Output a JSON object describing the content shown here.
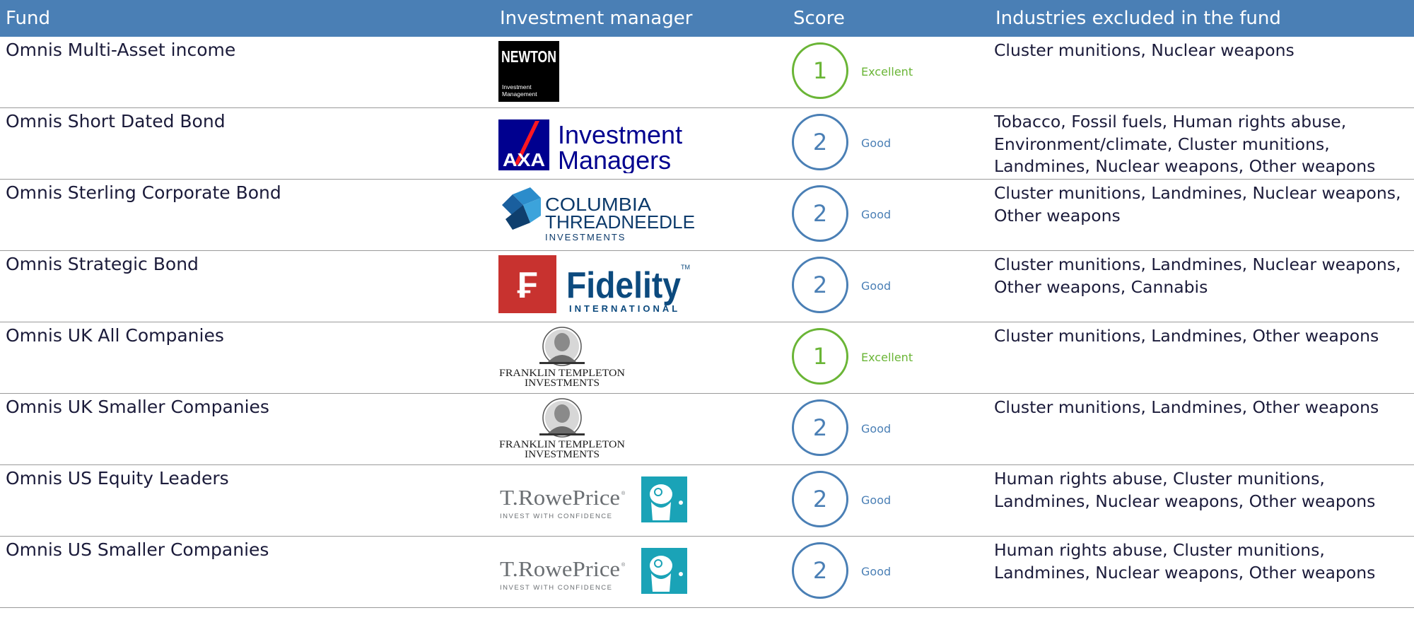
{
  "headers": {
    "fund": "Fund",
    "manager": "Investment manager",
    "score": "Score",
    "industries": "Industries excluded in the fund"
  },
  "colors": {
    "header_bg": "#4a7fb5",
    "excellent": "#6ab536",
    "good": "#4a7fb5"
  },
  "rows": [
    {
      "fund": "Omnis Multi-Asset income",
      "manager_logo": "newton-logo",
      "score": "1",
      "rating": "Excellent",
      "industries": "Cluster munitions, Nuclear weapons"
    },
    {
      "fund": "Omnis Short Dated Bond",
      "manager_logo": "axa-logo",
      "score": "2",
      "rating": "Good",
      "industries": "Tobacco, Fossil fuels, Human rights abuse, Environment/climate, Cluster munitions, Landmines, Nuclear weapons, Other weapons"
    },
    {
      "fund": "Omnis Sterling Corporate Bond",
      "manager_logo": "columbia-threadneedle-logo",
      "score": "2",
      "rating": "Good",
      "industries": "Cluster munitions, Landmines, Nuclear weapons, Other weapons"
    },
    {
      "fund": "Omnis Strategic Bond",
      "manager_logo": "fidelity-logo",
      "score": "2",
      "rating": "Good",
      "industries": "Cluster munitions, Landmines, Nuclear weapons, Other weapons, Cannabis"
    },
    {
      "fund": "Omnis UK All Companies",
      "manager_logo": "franklin-templeton-logo",
      "score": "1",
      "rating": "Excellent",
      "industries": "Cluster munitions, Landmines, Other weapons"
    },
    {
      "fund": "Omnis UK Smaller Companies",
      "manager_logo": "franklin-templeton-logo",
      "score": "2",
      "rating": "Good",
      "industries": "Cluster munitions, Landmines, Other weapons"
    },
    {
      "fund": "Omnis US Equity Leaders",
      "manager_logo": "t-rowe-price-logo",
      "score": "2",
      "rating": "Good",
      "industries": "Human rights abuse, Cluster munitions, Landmines, Nuclear weapons, Other weapons"
    },
    {
      "fund": "Omnis US Smaller Companies",
      "manager_logo": "t-rowe-price-logo",
      "score": "2",
      "rating": "Good",
      "industries": "Human rights abuse, Cluster munitions, Landmines, Nuclear weapons, Other weapons"
    }
  ]
}
